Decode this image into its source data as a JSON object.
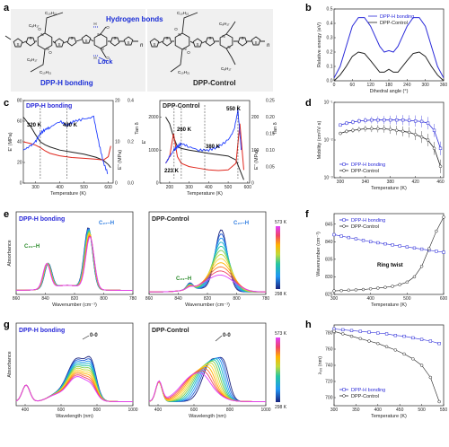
{
  "figure": {
    "panels": {
      "a": {
        "label": "a",
        "left_name": "DPP-H bonding",
        "right_name": "DPP-Control",
        "hbond_note": "Hydrogen bonds",
        "lock_note": "Lock",
        "alkyl": {
          "c10h21": "C₁₀H₂₁",
          "c8h17": "C₈H₁₇"
        },
        "n": "n",
        "atoms": {
          "N": "N",
          "O": "O",
          "H": "H",
          "S": "S"
        }
      },
      "b": {
        "label": "b"
      },
      "c": {
        "label": "c",
        "left_title": "DPP-H bonding",
        "right_title": "DPP-Control",
        "left_annotations": [
          "320 K",
          "430 K"
        ],
        "right_annotations": [
          "223 K",
          "260 K",
          "380 K",
          "550 K"
        ],
        "left_ylabel": "E' (MPa)",
        "left_y2label": "E'' (MPa)",
        "left_y3label": "Tan δ",
        "right_ylabel": "E'",
        "right_y2label": "E'' (MPa)",
        "right_y3label": "Tan δ",
        "xlabel": "Temperature (K)"
      },
      "d": {
        "label": "d"
      },
      "e": {
        "label": "e",
        "left_title": "DPP-H bonding",
        "right_title": "DPP-Control",
        "peaks_left": [
          "C₂₁–H",
          "C₂₇–H"
        ],
        "peaks_right": [
          "C₂₁–H",
          "C₂₇–H"
        ],
        "xlabel": "Wavenumber (cm⁻¹)",
        "ylabel": "Absorbance",
        "cbar_top": "573 K",
        "cbar_bottom": "298 K"
      },
      "f": {
        "label": "f",
        "annotation": "Ring twist"
      },
      "g": {
        "label": "g",
        "left_title": "DPP-H bonding",
        "right_title": "DPP-Control",
        "peak": "0-0",
        "xlabel": "Wavelength (nm)",
        "ylabel": "Absorbance",
        "cbar_top": "573 K",
        "cbar_bottom": "298 K"
      },
      "h": {
        "label": "h"
      }
    },
    "colors": {
      "hbond": "#2b2bd9",
      "control": "#222222",
      "red": "#e0281e",
      "blue_trace": "#1e3cff",
      "note_blue": "#1a2dd6"
    }
  },
  "chart_data": [
    {
      "id": "b",
      "type": "line",
      "xlabel": "Dihedral angle (°)",
      "ylabel": "Relative energy (eV)",
      "xlim": [
        0,
        360
      ],
      "ylim": [
        0,
        0.5
      ],
      "xticks": [
        "0",
        "60",
        "120",
        "180",
        "240",
        "300",
        "360"
      ],
      "yticks": [
        "0.0",
        "0.1",
        "0.2",
        "0.3",
        "0.4",
        "0.5"
      ],
      "legend": "top-center",
      "series": [
        {
          "name": "DPP-H bonding",
          "color": "#2b2bd9",
          "x": [
            0,
            20,
            40,
            60,
            80,
            100,
            120,
            150,
            165,
            180,
            195,
            210,
            240,
            260,
            280,
            300,
            320,
            340,
            360
          ],
          "y": [
            0.02,
            0.1,
            0.24,
            0.38,
            0.44,
            0.44,
            0.38,
            0.24,
            0.2,
            0.21,
            0.2,
            0.24,
            0.38,
            0.44,
            0.44,
            0.38,
            0.24,
            0.1,
            0.02
          ]
        },
        {
          "name": "DPP-Control",
          "color": "#222222",
          "x": [
            0,
            20,
            40,
            60,
            80,
            100,
            120,
            150,
            165,
            180,
            195,
            210,
            240,
            260,
            280,
            300,
            320,
            340,
            360
          ],
          "y": [
            0.0,
            0.04,
            0.1,
            0.17,
            0.2,
            0.19,
            0.14,
            0.06,
            0.06,
            0.08,
            0.06,
            0.06,
            0.14,
            0.19,
            0.2,
            0.17,
            0.1,
            0.04,
            0.0
          ]
        }
      ]
    },
    {
      "id": "c-left",
      "type": "line",
      "xlim": [
        250,
        620
      ],
      "xticks": [
        "300",
        "400",
        "500",
        "600"
      ],
      "y1lim": [
        0,
        80
      ],
      "y1ticks": [
        "0",
        "20",
        "40",
        "60",
        "80"
      ],
      "y2lim": [
        0,
        20
      ],
      "y2ticks": [
        "0",
        "10",
        "20"
      ],
      "y3lim": [
        0,
        0.4
      ],
      "y3ticks": [
        "0.0",
        "0.2",
        "0.4"
      ],
      "series": [
        {
          "name": "E'",
          "axis": "y1",
          "color": "#222222",
          "x": [
            250,
            280,
            300,
            320,
            340,
            360,
            400,
            450,
            500,
            550,
            580,
            600,
            610
          ],
          "y": [
            64,
            55,
            47,
            40,
            37,
            35,
            32,
            30,
            28,
            25,
            22,
            18,
            15
          ]
        },
        {
          "name": "E''",
          "axis": "y2",
          "color": "#e0281e",
          "x": [
            250,
            280,
            300,
            320,
            340,
            360,
            400,
            450,
            500,
            550,
            580,
            600,
            610
          ],
          "y": [
            10,
            9.6,
            9.2,
            8.6,
            7.8,
            7.2,
            6.6,
            6.2,
            6.0,
            5.8,
            5.6,
            6.4,
            9
          ]
        },
        {
          "name": "Tan δ",
          "axis": "y3",
          "color": "#1e3cff",
          "x": [
            250,
            280,
            300,
            320,
            340,
            360,
            400,
            430,
            460,
            500,
            540,
            560,
            580,
            600
          ],
          "y": [
            0.16,
            0.18,
            0.2,
            0.24,
            0.26,
            0.27,
            0.3,
            0.28,
            0.3,
            0.31,
            0.32,
            0.2,
            0.1,
            0.04
          ]
        }
      ]
    },
    {
      "id": "c-right",
      "type": "line",
      "xlim": [
        150,
        610
      ],
      "xticks": [
        "200",
        "300",
        "400",
        "500",
        "600"
      ],
      "y1lim": [
        0,
        2500
      ],
      "y1ticks": [
        "0",
        "1000",
        "2000"
      ],
      "y2lim": [
        0,
        250
      ],
      "y2ticks": [
        "0",
        "100",
        "200"
      ],
      "y3lim": [
        0,
        0.25
      ],
      "y3ticks": [
        "0.05",
        "0.10",
        "0.15",
        "0.20",
        "0.25"
      ],
      "series": [
        {
          "name": "E'",
          "axis": "y1",
          "color": "#222222",
          "x": [
            180,
            200,
            220,
            240,
            260,
            300,
            350,
            400,
            450,
            500,
            540,
            560,
            580
          ],
          "y": [
            2000,
            1800,
            1400,
            1100,
            1050,
            1000,
            950,
            900,
            860,
            820,
            700,
            400,
            100
          ]
        },
        {
          "name": "E''",
          "axis": "y2",
          "color": "#e0281e",
          "x": [
            180,
            200,
            220,
            240,
            260,
            300,
            350,
            400,
            450,
            500,
            540,
            560,
            580
          ],
          "y": [
            60,
            80,
            150,
            80,
            60,
            50,
            45,
            40,
            38,
            40,
            60,
            180,
            40
          ]
        },
        {
          "name": "Tan δ",
          "axis": "y3",
          "color": "#1e3cff",
          "x": [
            180,
            200,
            223,
            240,
            260,
            300,
            350,
            400,
            450,
            500,
            530,
            550,
            570
          ],
          "y": [
            0.06,
            0.08,
            0.1,
            0.11,
            0.12,
            0.11,
            0.1,
            0.1,
            0.11,
            0.13,
            0.16,
            0.22,
            0.08
          ]
        }
      ]
    },
    {
      "id": "d",
      "type": "line",
      "xlabel": "Temperature (K)",
      "ylabel": "Mobility (cm²/V·s)",
      "xlim": [
        290,
        465
      ],
      "xticks": [
        "300",
        "340",
        "380",
        "420",
        "460"
      ],
      "yscale": "log",
      "ylim": [
        0.001,
        0.1
      ],
      "yticks": [
        "10⁻³",
        "10⁻²",
        "10⁻¹"
      ],
      "legend": "bottom-left",
      "series": [
        {
          "name": "DPP-H bonding",
          "color": "#2b2bd9",
          "x": [
            300,
            310,
            320,
            330,
            340,
            350,
            360,
            370,
            380,
            390,
            400,
            410,
            420,
            430,
            440,
            450,
            460
          ],
          "y": [
            0.025,
            0.028,
            0.03,
            0.032,
            0.033,
            0.034,
            0.034,
            0.034,
            0.034,
            0.034,
            0.034,
            0.033,
            0.032,
            0.031,
            0.028,
            0.018,
            0.006
          ]
        },
        {
          "name": "DPP-Control",
          "color": "#222222",
          "x": [
            300,
            310,
            320,
            330,
            340,
            350,
            360,
            370,
            380,
            390,
            400,
            410,
            420,
            430,
            440,
            450,
            460
          ],
          "y": [
            0.015,
            0.017,
            0.018,
            0.019,
            0.02,
            0.02,
            0.02,
            0.02,
            0.019,
            0.018,
            0.017,
            0.016,
            0.014,
            0.012,
            0.01,
            0.006,
            0.002
          ]
        }
      ]
    },
    {
      "id": "e-left",
      "type": "line",
      "xlim": [
        860,
        780
      ],
      "xticks": [
        "860",
        "840",
        "820",
        "800",
        "780"
      ],
      "series_count": 12
    },
    {
      "id": "e-right",
      "type": "line",
      "xlim": [
        860,
        780
      ],
      "xticks": [
        "860",
        "840",
        "820",
        "800",
        "780"
      ],
      "series_count": 12
    },
    {
      "id": "f",
      "type": "line",
      "xlabel": "Temperature (K)",
      "ylabel": "Wavenumber (cm⁻¹)",
      "xlim": [
        300,
        600
      ],
      "xticks": [
        "300",
        "400",
        "500",
        "600"
      ],
      "ylim": [
        825,
        848
      ],
      "yticks": [
        "825",
        "830",
        "835",
        "840",
        "845"
      ],
      "legend": "top-left",
      "series": [
        {
          "name": "DPP-H bonding",
          "color": "#2b2bd9",
          "x": [
            300,
            320,
            340,
            360,
            380,
            400,
            420,
            440,
            460,
            480,
            500,
            520,
            540,
            560,
            580,
            600
          ],
          "y": [
            842,
            841.6,
            841.2,
            840.8,
            840.4,
            840.0,
            839.7,
            839.4,
            839.1,
            838.8,
            838.5,
            838.2,
            837.9,
            837.6,
            837.3,
            837.0
          ]
        },
        {
          "name": "DPP-Control",
          "color": "#222222",
          "x": [
            300,
            320,
            340,
            360,
            380,
            400,
            420,
            440,
            460,
            480,
            500,
            520,
            540,
            560,
            580,
            600
          ],
          "y": [
            826,
            826.1,
            826.2,
            826.3,
            826.4,
            826.6,
            826.8,
            827,
            827.3,
            827.8,
            828.5,
            830,
            833,
            838,
            843,
            847
          ]
        }
      ]
    },
    {
      "id": "g-left",
      "type": "line",
      "xlim": [
        350,
        1000
      ],
      "xticks": [
        "400",
        "600",
        "800",
        "1000"
      ],
      "series_count": 12
    },
    {
      "id": "g-right",
      "type": "line",
      "xlim": [
        350,
        1000
      ],
      "xticks": [
        "400",
        "600",
        "800",
        "1000"
      ],
      "series_count": 12
    },
    {
      "id": "h",
      "type": "line",
      "xlabel": "Temperature (K)",
      "ylabel": "λ₀₀ (nm)",
      "xlim": [
        300,
        550
      ],
      "xticks": [
        "300",
        "350",
        "400",
        "450",
        "500",
        "550"
      ],
      "ylim": [
        690,
        790
      ],
      "yticks": [
        "700",
        "720",
        "740",
        "760",
        "780"
      ],
      "legend": "bottom-left",
      "series": [
        {
          "name": "DPP-H bonding",
          "color": "#2b2bd9",
          "x": [
            300,
            320,
            340,
            360,
            380,
            400,
            420,
            440,
            460,
            480,
            500,
            520,
            540
          ],
          "y": [
            785,
            784,
            783,
            782,
            781,
            780,
            779,
            777,
            776,
            774,
            772,
            770,
            767
          ]
        },
        {
          "name": "DPP-Control",
          "color": "#222222",
          "x": [
            300,
            320,
            340,
            360,
            380,
            400,
            420,
            440,
            460,
            480,
            500,
            520,
            540
          ],
          "y": [
            782,
            779,
            776,
            773,
            770,
            767,
            763,
            759,
            754,
            748,
            740,
            725,
            695
          ]
        }
      ]
    }
  ]
}
